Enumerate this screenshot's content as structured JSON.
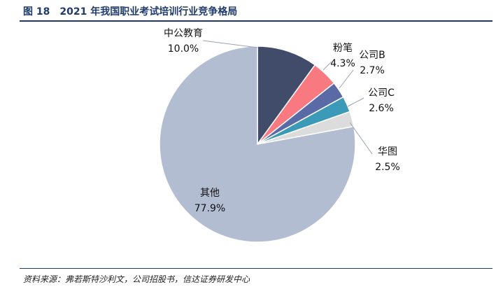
{
  "header": {
    "title": "图 18　2021 年我国职业考试培训行业竞争格局"
  },
  "footer": {
    "source": "资料来源：弗若斯特沙利文，公司招股书，信达证券研发中心"
  },
  "colors": {
    "title": "#1f3a6b"
  },
  "chart_data": {
    "type": "pie",
    "title": "",
    "slices": [
      {
        "label": "中公教育",
        "value": 10.0,
        "display": "10.0%",
        "color": "#414c6b"
      },
      {
        "label": "粉笔",
        "value": 4.3,
        "display": "4.3%",
        "color": "#f87a80"
      },
      {
        "label": "公司B",
        "value": 2.7,
        "display": "2.7%",
        "color": "#5a6aa6"
      },
      {
        "label": "公司C",
        "value": 2.6,
        "display": "2.6%",
        "color": "#3a9ab8"
      },
      {
        "label": "华图",
        "value": 2.5,
        "display": "2.5%",
        "color": "#dcdcdc"
      },
      {
        "label": "其他",
        "value": 77.9,
        "display": "77.9%",
        "color": "#b2bdd1"
      }
    ],
    "start": "12 o'clock",
    "direction": "clockwise"
  }
}
